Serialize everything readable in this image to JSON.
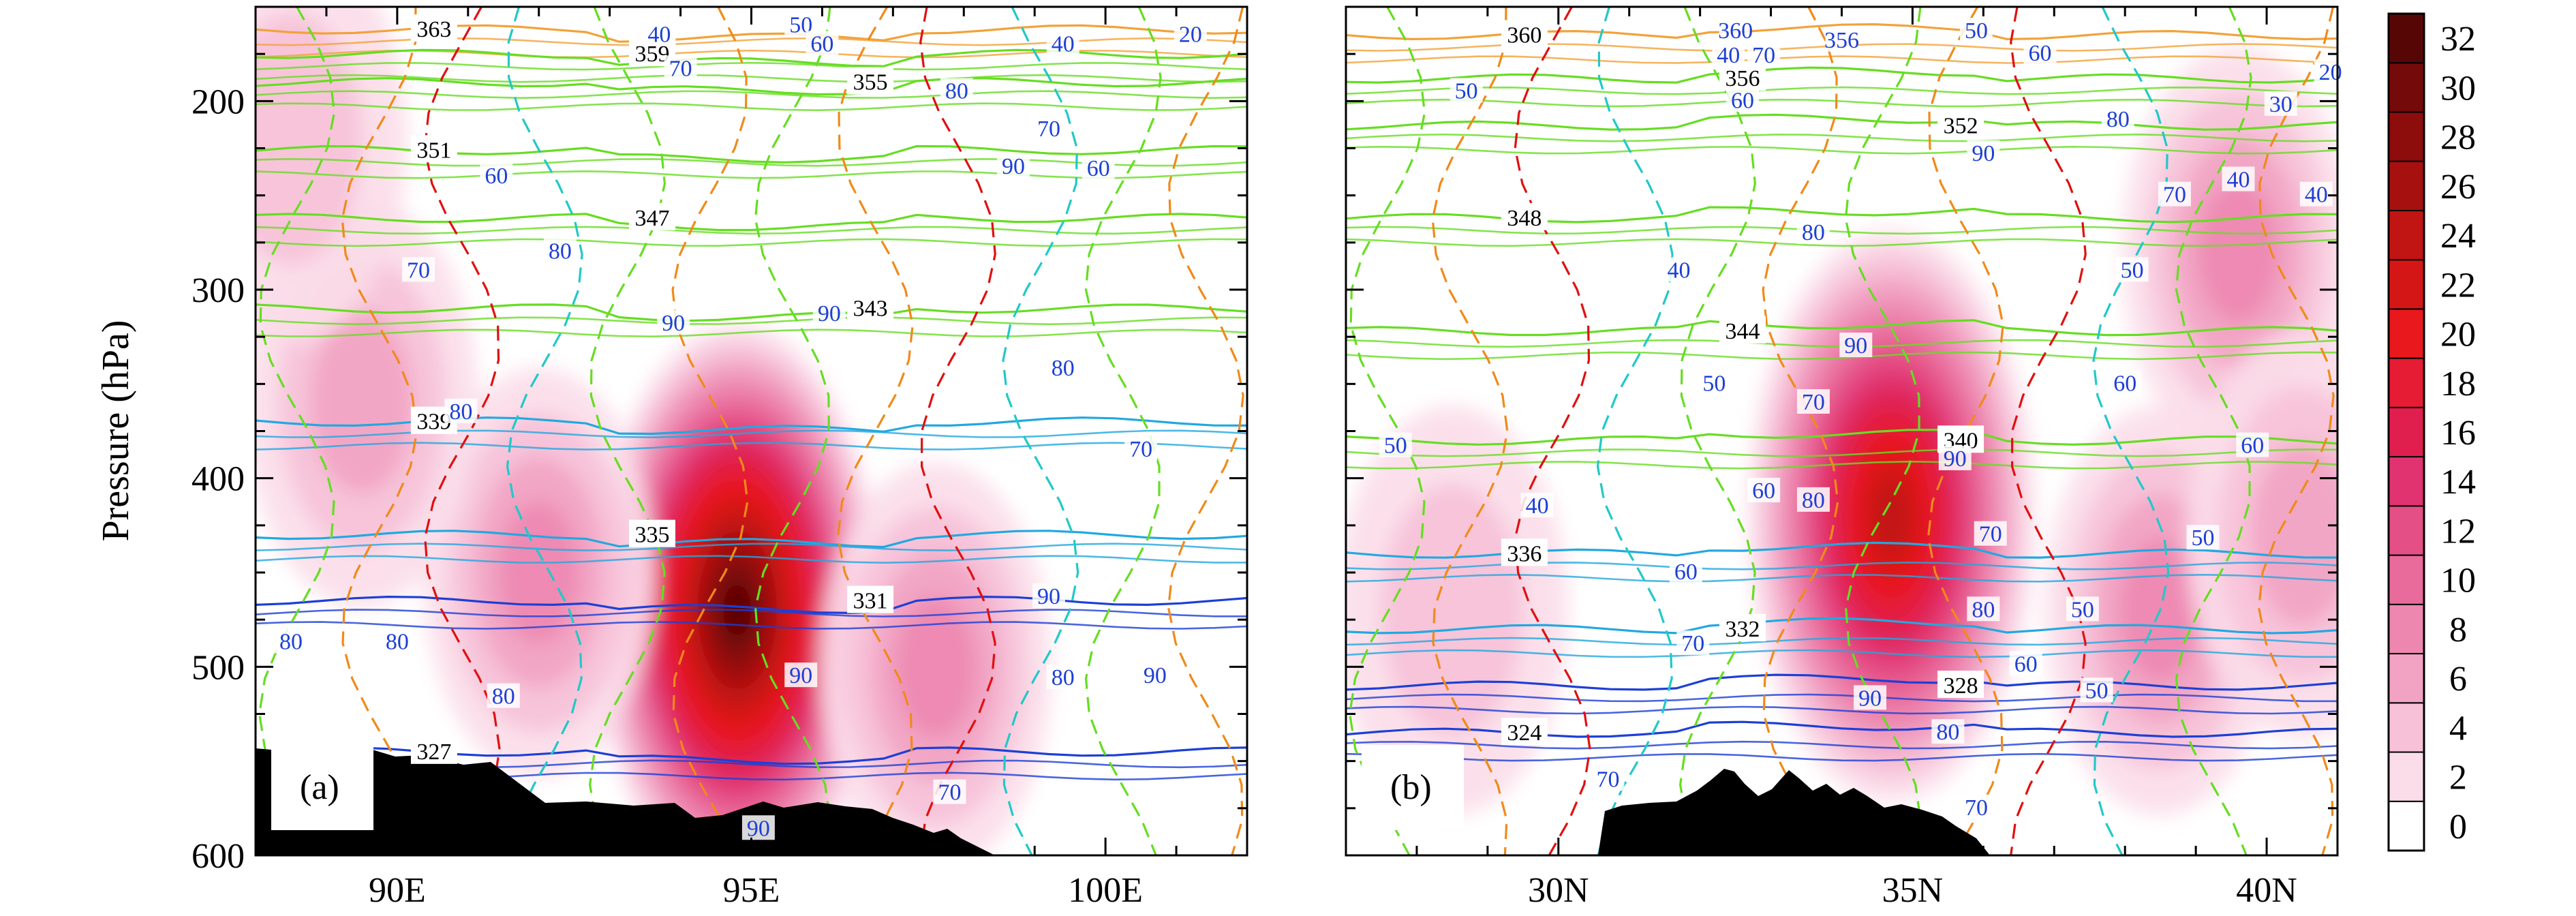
{
  "chart_data": [
    {
      "type": "contour",
      "panel": "(a)",
      "xlabel": "",
      "ylabel": "Pressure (hPa)",
      "xlim": [
        88,
        102
      ],
      "ylim": [
        600,
        150
      ],
      "x_ticks": [
        "90E",
        "95E",
        "100E"
      ],
      "x_tick_values": [
        90,
        95,
        100
      ],
      "y_ticks": [
        "200",
        "300",
        "400",
        "500",
        "600"
      ],
      "y_tick_values": [
        200,
        300,
        400,
        500,
        600
      ],
      "shaded_field": {
        "centers": [
          {
            "x": 94.8,
            "p": 470,
            "value": 32
          },
          {
            "x": 92.0,
            "p": 450,
            "value": 8
          },
          {
            "x": 89.5,
            "p": 360,
            "value": 6
          },
          {
            "x": 97.6,
            "p": 500,
            "value": 8
          },
          {
            "x": 88.5,
            "p": 220,
            "value": 3
          }
        ]
      },
      "theta_contours": [
        {
          "label": "363",
          "p": 162
        },
        {
          "label": "359",
          "p": 175
        },
        {
          "label": "355",
          "p": 190
        },
        {
          "label": "351",
          "p": 226
        },
        {
          "label": "347",
          "p": 262
        },
        {
          "label": "343",
          "p": 310
        },
        {
          "label": "339",
          "p": 370
        },
        {
          "label": "335",
          "p": 430
        },
        {
          "label": "331",
          "p": 465
        },
        {
          "label": "327",
          "p": 545
        }
      ],
      "rh_labels": [
        {
          "label": "40",
          "x": 93.7,
          "p": 165
        },
        {
          "label": "50",
          "x": 95.7,
          "p": 160
        },
        {
          "label": "60",
          "x": 96.0,
          "p": 170
        },
        {
          "label": "40",
          "x": 99.4,
          "p": 170
        },
        {
          "label": "20",
          "x": 101.2,
          "p": 165
        },
        {
          "label": "70",
          "x": 94.0,
          "p": 183
        },
        {
          "label": "80",
          "x": 97.9,
          "p": 195
        },
        {
          "label": "70",
          "x": 99.2,
          "p": 215
        },
        {
          "label": "90",
          "x": 98.7,
          "p": 235
        },
        {
          "label": "60",
          "x": 99.9,
          "p": 236
        },
        {
          "label": "60",
          "x": 91.4,
          "p": 240
        },
        {
          "label": "70",
          "x": 90.3,
          "p": 290
        },
        {
          "label": "80",
          "x": 92.3,
          "p": 280
        },
        {
          "label": "90",
          "x": 93.9,
          "p": 318
        },
        {
          "label": "90",
          "x": 96.1,
          "p": 313
        },
        {
          "label": "80",
          "x": 99.4,
          "p": 342
        },
        {
          "label": "70",
          "x": 100.5,
          "p": 385
        },
        {
          "label": "80",
          "x": 90.9,
          "p": 365
        },
        {
          "label": "90",
          "x": 99.2,
          "p": 463
        },
        {
          "label": "80",
          "x": 88.5,
          "p": 487
        },
        {
          "label": "80",
          "x": 90.0,
          "p": 487
        },
        {
          "label": "90",
          "x": 95.7,
          "p": 505
        },
        {
          "label": "80",
          "x": 99.4,
          "p": 506
        },
        {
          "label": "90",
          "x": 100.7,
          "p": 505
        },
        {
          "label": "80",
          "x": 91.5,
          "p": 516
        },
        {
          "label": "70",
          "x": 97.8,
          "p": 567
        },
        {
          "label": "90",
          "x": 95.1,
          "p": 586
        }
      ]
    },
    {
      "type": "contour",
      "panel": "(b)",
      "xlabel": "",
      "ylabel": "",
      "xlim": [
        27,
        41
      ],
      "ylim": [
        600,
        150
      ],
      "x_ticks": [
        "30N",
        "35N",
        "40N"
      ],
      "x_tick_values": [
        30,
        35,
        40
      ],
      "y_ticks": [],
      "shaded_field": {
        "centers": [
          {
            "x": 34.7,
            "p": 420,
            "value": 24
          },
          {
            "x": 38.5,
            "p": 470,
            "value": 8
          },
          {
            "x": 39.6,
            "p": 280,
            "value": 8
          },
          {
            "x": 28.5,
            "p": 470,
            "value": 4
          },
          {
            "x": 40.5,
            "p": 430,
            "value": 6
          }
        ]
      },
      "theta_contours": [
        {
          "label": "360",
          "p": 165
        },
        {
          "label": "356",
          "p": 188
        },
        {
          "label": "352",
          "p": 213
        },
        {
          "label": "348",
          "p": 262
        },
        {
          "label": "344",
          "p": 322
        },
        {
          "label": "340",
          "p": 380
        },
        {
          "label": "336",
          "p": 440
        },
        {
          "label": "332",
          "p": 480
        },
        {
          "label": "328",
          "p": 510
        },
        {
          "label": "324",
          "p": 535
        }
      ],
      "rh_labels": [
        {
          "label": "360",
          "x": 32.5,
          "p": 163
        },
        {
          "label": "356",
          "x": 34.0,
          "p": 168
        },
        {
          "label": "50",
          "x": 35.9,
          "p": 163
        },
        {
          "label": "60",
          "x": 36.8,
          "p": 175
        },
        {
          "label": "40",
          "x": 32.4,
          "p": 176
        },
        {
          "label": "70",
          "x": 32.9,
          "p": 176
        },
        {
          "label": "50",
          "x": 28.7,
          "p": 195
        },
        {
          "label": "60",
          "x": 32.6,
          "p": 200
        },
        {
          "label": "20",
          "x": 40.9,
          "p": 185
        },
        {
          "label": "30",
          "x": 40.2,
          "p": 202
        },
        {
          "label": "80",
          "x": 37.9,
          "p": 210
        },
        {
          "label": "90",
          "x": 36.0,
          "p": 228
        },
        {
          "label": "40",
          "x": 39.6,
          "p": 242
        },
        {
          "label": "40",
          "x": 40.7,
          "p": 250
        },
        {
          "label": "70",
          "x": 38.7,
          "p": 250
        },
        {
          "label": "80",
          "x": 33.6,
          "p": 270
        },
        {
          "label": "50",
          "x": 38.1,
          "p": 290
        },
        {
          "label": "40",
          "x": 31.7,
          "p": 290
        },
        {
          "label": "90",
          "x": 34.2,
          "p": 330
        },
        {
          "label": "60",
          "x": 38.0,
          "p": 350
        },
        {
          "label": "50",
          "x": 32.2,
          "p": 350
        },
        {
          "label": "70",
          "x": 33.6,
          "p": 360
        },
        {
          "label": "50",
          "x": 27.7,
          "p": 383
        },
        {
          "label": "90",
          "x": 35.6,
          "p": 390
        },
        {
          "label": "60",
          "x": 39.8,
          "p": 383
        },
        {
          "label": "60",
          "x": 32.9,
          "p": 407
        },
        {
          "label": "80",
          "x": 33.6,
          "p": 412
        },
        {
          "label": "40",
          "x": 29.7,
          "p": 415
        },
        {
          "label": "70",
          "x": 36.1,
          "p": 430
        },
        {
          "label": "50",
          "x": 39.1,
          "p": 432
        },
        {
          "label": "60",
          "x": 31.8,
          "p": 450
        },
        {
          "label": "80",
          "x": 36.0,
          "p": 470
        },
        {
          "label": "50",
          "x": 37.4,
          "p": 470
        },
        {
          "label": "70",
          "x": 31.9,
          "p": 488
        },
        {
          "label": "60",
          "x": 36.6,
          "p": 499
        },
        {
          "label": "50",
          "x": 37.6,
          "p": 513
        },
        {
          "label": "90",
          "x": 34.4,
          "p": 517
        },
        {
          "label": "80",
          "x": 35.5,
          "p": 535
        },
        {
          "label": "70",
          "x": 30.7,
          "p": 560
        },
        {
          "label": "70",
          "x": 35.9,
          "p": 575
        }
      ]
    }
  ],
  "colorbar": {
    "levels": [
      "0",
      "2",
      "4",
      "6",
      "8",
      "10",
      "12",
      "14",
      "16",
      "18",
      "20",
      "22",
      "24",
      "26",
      "28",
      "30",
      "32"
    ],
    "colors": [
      "#ffffff",
      "#fbdde9",
      "#f7c1d8",
      "#f2a3c3",
      "#ed87b0",
      "#e86b9b",
      "#e44f86",
      "#e03370",
      "#e01f4f",
      "#e61b34",
      "#e8181c",
      "#d41716",
      "#c01512",
      "#a6110f",
      "#8d0d0c",
      "#740a09",
      "#570606"
    ]
  },
  "colors": {
    "theta_cold": "#1d3fd6",
    "theta_mid": "#22a8e0",
    "theta_warm": "#66dd22",
    "theta_hot": "#f2a23a",
    "rh_green": "#66dd22",
    "rh_orange": "#f08a1a",
    "rh_red": "#e01010",
    "rh_cyan": "#22c8c8",
    "rh_blue": "#1d3fd6",
    "terrain": "#000000"
  }
}
